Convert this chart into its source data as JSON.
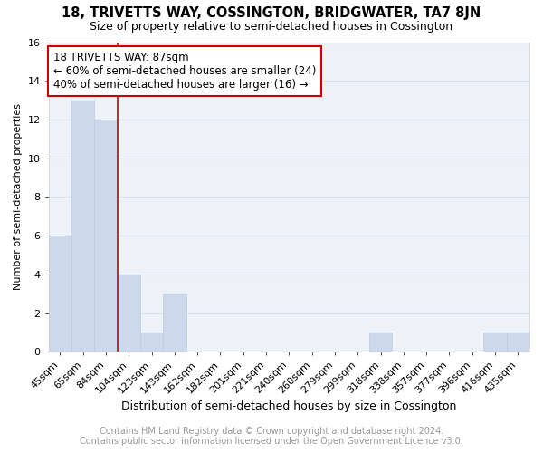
{
  "title1": "18, TRIVETTS WAY, COSSINGTON, BRIDGWATER, TA7 8JN",
  "title2": "Size of property relative to semi-detached houses in Cossington",
  "xlabel": "Distribution of semi-detached houses by size in Cossington",
  "ylabel": "Number of semi-detached properties",
  "footer1": "Contains HM Land Registry data © Crown copyright and database right 2024.",
  "footer2": "Contains public sector information licensed under the Open Government Licence v3.0.",
  "annotation_title": "18 TRIVETTS WAY: 87sqm",
  "annotation_line1": "← 60% of semi-detached houses are smaller (24)",
  "annotation_line2": "40% of semi-detached houses are larger (16) →",
  "bar_color": "#cdd9ea",
  "bar_edge_color": "#b8cce0",
  "vline_color": "#cc0000",
  "annotation_box_color": "#ffffff",
  "annotation_box_edge": "#cc0000",
  "categories": [
    "45sqm",
    "65sqm",
    "84sqm",
    "104sqm",
    "123sqm",
    "143sqm",
    "162sqm",
    "182sqm",
    "201sqm",
    "221sqm",
    "240sqm",
    "260sqm",
    "279sqm",
    "299sqm",
    "318sqm",
    "338sqm",
    "357sqm",
    "377sqm",
    "396sqm",
    "416sqm",
    "435sqm"
  ],
  "values": [
    6,
    13,
    12,
    4,
    1,
    3,
    0,
    0,
    0,
    0,
    0,
    0,
    0,
    0,
    1,
    0,
    0,
    0,
    0,
    1,
    1
  ],
  "vline_position": 2.5,
  "ylim": [
    0,
    16
  ],
  "yticks": [
    0,
    2,
    4,
    6,
    8,
    10,
    12,
    14,
    16
  ],
  "background_color": "#eef2f8",
  "grid_color": "#d8e0ec",
  "title1_fontsize": 10.5,
  "title2_fontsize": 9,
  "xlabel_fontsize": 9,
  "ylabel_fontsize": 8,
  "tick_fontsize": 8,
  "footer_fontsize": 7,
  "annot_fontsize": 8.5
}
